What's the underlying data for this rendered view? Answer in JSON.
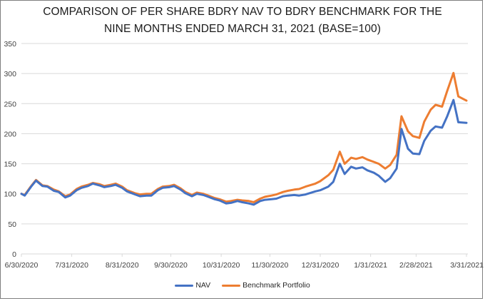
{
  "chart_data": {
    "type": "line",
    "title": "COMPARISON OF PER SHARE BDRY NAV TO BDRY BENCHMARK FOR THE NINE MONTHS ENDED MARCH 31, 2021 (BASE=100)",
    "title_lines": [
      "COMPARISON OF PER SHARE BDRY NAV TO BDRY BENCHMARK FOR THE",
      "NINE MONTHS ENDED MARCH 31, 2021 (BASE=100)"
    ],
    "xlabel": "",
    "ylabel": "",
    "ylim": [
      0,
      350
    ],
    "yticks": [
      0,
      50,
      100,
      150,
      200,
      250,
      300,
      350
    ],
    "xlim": [
      "2020-06-30",
      "2021-03-31"
    ],
    "xtick_labels": [
      "6/30/2020",
      "7/31/2020",
      "8/31/2020",
      "9/30/2020",
      "10/31/2020",
      "11/30/2020",
      "12/31/2020",
      "1/31/2021",
      "2/28/2021",
      "3/31/2021"
    ],
    "xtick_dates": [
      "2020-06-30",
      "2020-07-31",
      "2020-08-31",
      "2020-09-30",
      "2020-10-31",
      "2020-11-30",
      "2020-12-31",
      "2021-01-31",
      "2021-02-28",
      "2021-03-31"
    ],
    "grid": "horizontal",
    "legend_position": "bottom",
    "x": [
      "2020-06-30",
      "2020-07-02",
      "2020-07-06",
      "2020-07-09",
      "2020-07-13",
      "2020-07-16",
      "2020-07-20",
      "2020-07-23",
      "2020-07-27",
      "2020-07-30",
      "2020-08-03",
      "2020-08-06",
      "2020-08-10",
      "2020-08-13",
      "2020-08-17",
      "2020-08-20",
      "2020-08-24",
      "2020-08-27",
      "2020-08-31",
      "2020-09-03",
      "2020-09-08",
      "2020-09-11",
      "2020-09-15",
      "2020-09-18",
      "2020-09-22",
      "2020-09-25",
      "2020-09-29",
      "2020-10-02",
      "2020-10-06",
      "2020-10-09",
      "2020-10-13",
      "2020-10-16",
      "2020-10-20",
      "2020-10-23",
      "2020-10-27",
      "2020-10-30",
      "2020-11-03",
      "2020-11-06",
      "2020-11-10",
      "2020-11-13",
      "2020-11-17",
      "2020-11-20",
      "2020-11-24",
      "2020-11-27",
      "2020-12-01",
      "2020-12-04",
      "2020-12-08",
      "2020-12-11",
      "2020-12-15",
      "2020-12-18",
      "2020-12-22",
      "2020-12-28",
      "2020-12-31",
      "2021-01-05",
      "2021-01-08",
      "2021-01-12",
      "2021-01-15",
      "2021-01-19",
      "2021-01-22",
      "2021-01-26",
      "2021-01-29",
      "2021-02-02",
      "2021-02-05",
      "2021-02-09",
      "2021-02-12",
      "2021-02-16",
      "2021-02-19",
      "2021-02-23",
      "2021-02-26",
      "2021-03-02",
      "2021-03-05",
      "2021-03-09",
      "2021-03-12",
      "2021-03-16",
      "2021-03-19",
      "2021-03-23",
      "2021-03-26",
      "2021-03-31"
    ],
    "series": [
      {
        "name": "NAV",
        "color": "#4472c4",
        "values": [
          100,
          97,
          112,
          122,
          113,
          112,
          105,
          103,
          94,
          97,
          106,
          110,
          113,
          117,
          114,
          111,
          113,
          115,
          110,
          104,
          99,
          96,
          97,
          97,
          106,
          110,
          111,
          113,
          107,
          101,
          96,
          100,
          98,
          95,
          91,
          89,
          84,
          85,
          88,
          86,
          84,
          82,
          88,
          90,
          91,
          92,
          96,
          97,
          98,
          97,
          99,
          104,
          106,
          112,
          120,
          150,
          133,
          145,
          142,
          144,
          139,
          135,
          130,
          120,
          126,
          142,
          208,
          175,
          167,
          166,
          188,
          205,
          212,
          210,
          228,
          256,
          219,
          218
        ]
      },
      {
        "name": "Benchmark Portfolio",
        "color": "#ed7d31",
        "values": [
          100,
          98,
          113,
          123,
          114,
          113,
          107,
          104,
          96,
          99,
          108,
          112,
          115,
          118,
          116,
          113,
          115,
          117,
          112,
          106,
          101,
          99,
          100,
          100,
          108,
          112,
          113,
          115,
          109,
          103,
          98,
          102,
          100,
          97,
          93,
          91,
          87,
          88,
          90,
          89,
          88,
          86,
          92,
          95,
          97,
          99,
          103,
          105,
          107,
          108,
          112,
          117,
          121,
          131,
          140,
          170,
          150,
          160,
          158,
          161,
          157,
          153,
          150,
          142,
          148,
          165,
          229,
          204,
          196,
          193,
          220,
          240,
          248,
          245,
          270,
          301,
          262,
          255
        ]
      }
    ]
  },
  "legend": {
    "items": [
      {
        "label": "NAV",
        "color": "#4472c4"
      },
      {
        "label": "Benchmark Portfolio",
        "color": "#ed7d31"
      }
    ]
  }
}
